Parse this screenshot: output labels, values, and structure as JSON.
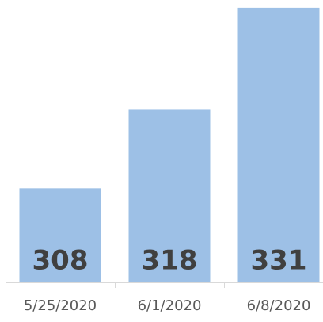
{
  "chart_data": {
    "type": "bar",
    "categories": [
      "5/25/2020",
      "6/1/2020",
      "6/8/2020"
    ],
    "values": [
      308,
      318,
      331
    ],
    "color": "#9dc0e6",
    "ylim": [
      296,
      332
    ]
  }
}
